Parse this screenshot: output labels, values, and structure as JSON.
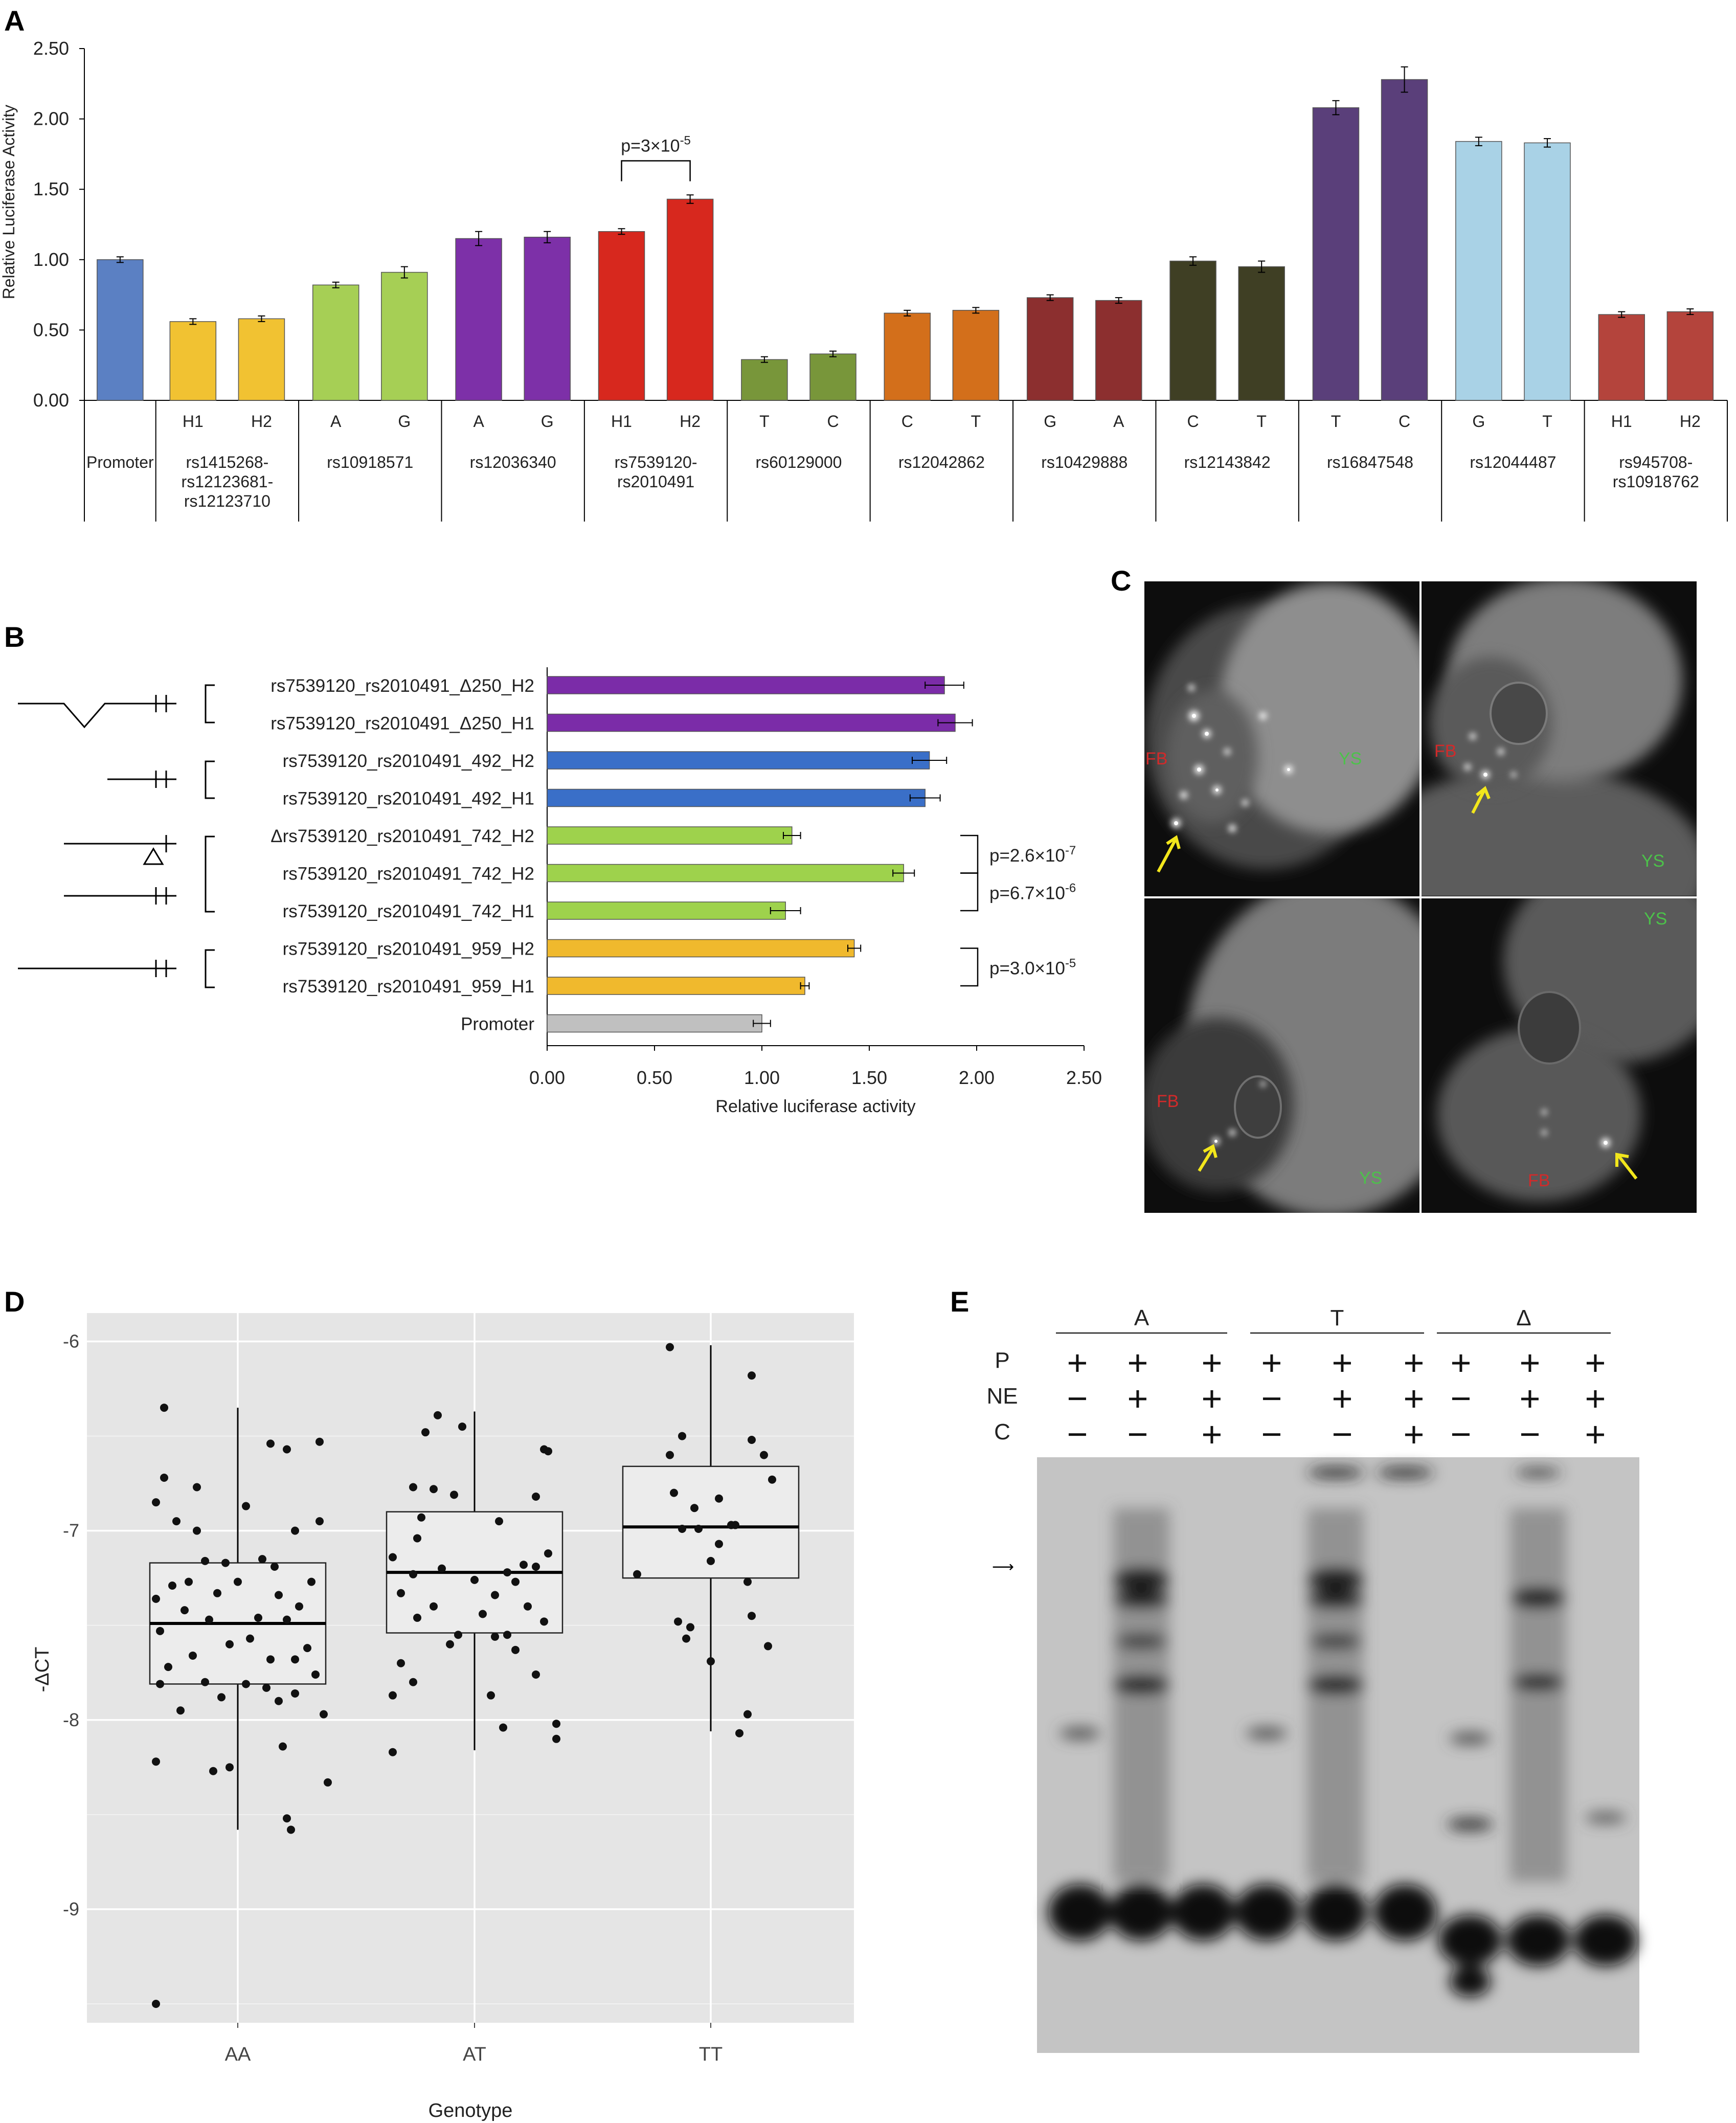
{
  "panels": {
    "A": "A",
    "B": "B",
    "C": "C",
    "D": "D",
    "E": "E"
  },
  "colors": {
    "promoter_blue": "#5b80c3",
    "yellow": "#f1c232",
    "light_green": "#a6cf55",
    "purple": "#7d30a8",
    "red": "#d7281e",
    "olive": "#78963a",
    "orange": "#d36f1b",
    "brown": "#8c2f2f",
    "dark_olive": "#3f3f24",
    "dark_purple": "#5a3f7a",
    "light_blue": "#a9d2e6",
    "rose": "#b4443c",
    "gray": "#c0c0c0",
    "blue_b": "#3a6fc8",
    "purple_b": "#7b2ca8",
    "green_b": "#9ed24c",
    "yellow_b": "#f0b92d",
    "fb_label": "#d12a2a",
    "ys_label": "#4cc24a",
    "arrow": "#f2e61c",
    "panel_d_bg": "#e5e5e5"
  },
  "chart_data": [
    {
      "panel": "A",
      "type": "bar",
      "ylabel": "Relative Luciferase Activity",
      "ylim": [
        0,
        2.5
      ],
      "yticks": [
        "0.00",
        "0.50",
        "1.00",
        "1.50",
        "2.00",
        "2.50"
      ],
      "bars": [
        {
          "allele": "",
          "value": 1.0,
          "err": 0.02,
          "color": "#5b80c3"
        },
        {
          "allele": "H1",
          "value": 0.56,
          "err": 0.02,
          "color": "#f1c232"
        },
        {
          "allele": "H2",
          "value": 0.58,
          "err": 0.02,
          "color": "#f1c232"
        },
        {
          "allele": "A",
          "value": 0.82,
          "err": 0.02,
          "color": "#a6cf55"
        },
        {
          "allele": "G",
          "value": 0.91,
          "err": 0.04,
          "color": "#a6cf55"
        },
        {
          "allele": "A",
          "value": 1.15,
          "err": 0.05,
          "color": "#7d30a8"
        },
        {
          "allele": "G",
          "value": 1.16,
          "err": 0.04,
          "color": "#7d30a8"
        },
        {
          "allele": "H1",
          "value": 1.2,
          "err": 0.02,
          "color": "#d7281e"
        },
        {
          "allele": "H2",
          "value": 1.43,
          "err": 0.03,
          "color": "#d7281e"
        },
        {
          "allele": "T",
          "value": 0.29,
          "err": 0.02,
          "color": "#78963a"
        },
        {
          "allele": "C",
          "value": 0.33,
          "err": 0.02,
          "color": "#78963a"
        },
        {
          "allele": "C",
          "value": 0.62,
          "err": 0.02,
          "color": "#d36f1b"
        },
        {
          "allele": "T",
          "value": 0.64,
          "err": 0.02,
          "color": "#d36f1b"
        },
        {
          "allele": "G",
          "value": 0.73,
          "err": 0.02,
          "color": "#8c2f2f"
        },
        {
          "allele": "A",
          "value": 0.71,
          "err": 0.02,
          "color": "#8c2f2f"
        },
        {
          "allele": "C",
          "value": 0.99,
          "err": 0.03,
          "color": "#3f3f24"
        },
        {
          "allele": "T",
          "value": 0.95,
          "err": 0.04,
          "color": "#3f3f24"
        },
        {
          "allele": "T",
          "value": 2.08,
          "err": 0.05,
          "color": "#5a3f7a"
        },
        {
          "allele": "C",
          "value": 2.28,
          "err": 0.09,
          "color": "#5a3f7a"
        },
        {
          "allele": "G",
          "value": 1.84,
          "err": 0.03,
          "color": "#a9d2e6"
        },
        {
          "allele": "T",
          "value": 1.83,
          "err": 0.03,
          "color": "#a9d2e6"
        },
        {
          "allele": "H1",
          "value": 0.61,
          "err": 0.02,
          "color": "#b4443c"
        },
        {
          "allele": "H2",
          "value": 0.63,
          "err": 0.02,
          "color": "#b4443c"
        }
      ],
      "groups": [
        {
          "label": [
            "Promoter"
          ],
          "bars": [
            0
          ]
        },
        {
          "label": [
            "rs1415268-",
            "rs12123681-",
            "rs12123710"
          ],
          "bars": [
            1,
            2
          ]
        },
        {
          "label": [
            "rs10918571"
          ],
          "bars": [
            3,
            4
          ]
        },
        {
          "label": [
            "rs12036340"
          ],
          "bars": [
            5,
            6
          ]
        },
        {
          "label": [
            "rs7539120-",
            "rs2010491"
          ],
          "bars": [
            7,
            8
          ]
        },
        {
          "label": [
            "rs60129000"
          ],
          "bars": [
            9,
            10
          ]
        },
        {
          "label": [
            "rs12042862"
          ],
          "bars": [
            11,
            12
          ]
        },
        {
          "label": [
            "rs10429888"
          ],
          "bars": [
            13,
            14
          ]
        },
        {
          "label": [
            "rs12143842"
          ],
          "bars": [
            15,
            16
          ]
        },
        {
          "label": [
            "rs16847548"
          ],
          "bars": [
            17,
            18
          ]
        },
        {
          "label": [
            "rs12044487"
          ],
          "bars": [
            19,
            20
          ]
        },
        {
          "label": [
            "rs945708-",
            "rs10918762"
          ],
          "bars": [
            21,
            22
          ]
        }
      ],
      "annotation": {
        "base": "p=3×10",
        "exp": "-5",
        "bars": [
          7,
          8
        ]
      }
    },
    {
      "panel": "B",
      "type": "bar",
      "orientation": "horizontal",
      "xlabel": "Relative luciferase activity",
      "xlim": [
        0,
        2.5
      ],
      "xticks": [
        "0.00",
        "0.50",
        "1.00",
        "1.50",
        "2.00",
        "2.50"
      ],
      "rows": [
        {
          "label": "rs7539120_rs2010491_Δ250_H2",
          "value": 1.85,
          "err": 0.09,
          "color": "#7b2ca8"
        },
        {
          "label": "rs7539120_rs2010491_Δ250_H1",
          "value": 1.9,
          "err": 0.08,
          "color": "#7b2ca8"
        },
        {
          "label": "rs7539120_rs2010491_492_H2",
          "value": 1.78,
          "err": 0.08,
          "color": "#3a6fc8"
        },
        {
          "label": "rs7539120_rs2010491_492_H1",
          "value": 1.76,
          "err": 0.07,
          "color": "#3a6fc8"
        },
        {
          "label": "Δrs7539120_rs2010491_742_H2",
          "value": 1.14,
          "err": 0.04,
          "color": "#9ed24c"
        },
        {
          "label": "rs7539120_rs2010491_742_H2",
          "value": 1.66,
          "err": 0.05,
          "color": "#9ed24c"
        },
        {
          "label": "rs7539120_rs2010491_742_H1",
          "value": 1.11,
          "err": 0.07,
          "color": "#9ed24c"
        },
        {
          "label": "rs7539120_rs2010491_959_H2",
          "value": 1.43,
          "err": 0.03,
          "color": "#f0b92d"
        },
        {
          "label": "rs7539120_rs2010491_959_H1",
          "value": 1.2,
          "err": 0.02,
          "color": "#f0b92d"
        },
        {
          "label": "Promoter",
          "value": 1.0,
          "err": 0.04,
          "color": "#c0c0c0"
        }
      ],
      "annotations": [
        {
          "base": "p=2.6×10",
          "exp": "-7",
          "rows": [
            4,
            5
          ]
        },
        {
          "base": "p=6.7×10",
          "exp": "-6",
          "rows": [
            5,
            6
          ]
        },
        {
          "base": "p=3.0×10",
          "exp": "-5",
          "rows": [
            7,
            8
          ]
        }
      ]
    },
    {
      "panel": "D",
      "type": "box",
      "xlabel": "Genotype",
      "ylabel": "-ΔCT",
      "ylim": [
        -9.6,
        -5.85
      ],
      "yticks": [
        -6,
        -7,
        -8,
        -9
      ],
      "ytick_labels": [
        "-6",
        "-7",
        "-8",
        "-9"
      ],
      "categories": [
        "AA",
        "AT",
        "TT"
      ],
      "boxes": [
        {
          "q1": -7.81,
          "median": -7.49,
          "q3": -7.17,
          "whisker_low": -8.58,
          "whisker_high": -6.35
        },
        {
          "q1": -7.54,
          "median": -7.22,
          "q3": -6.9,
          "whisker_low": -8.16,
          "whisker_high": -6.37
        },
        {
          "q1": -7.25,
          "median": -6.98,
          "q3": -6.66,
          "whisker_low": -8.06,
          "whisker_high": -6.02
        }
      ],
      "points": [
        [
          [
            -0.18,
            -6.35
          ],
          [
            0.08,
            -6.54
          ],
          [
            0.2,
            -6.53
          ],
          [
            0.12,
            -6.57
          ],
          [
            -0.18,
            -6.72
          ],
          [
            -0.1,
            -6.77
          ],
          [
            -0.2,
            -6.85
          ],
          [
            0.02,
            -6.87
          ],
          [
            -0.15,
            -6.95
          ],
          [
            0.2,
            -6.95
          ],
          [
            -0.1,
            -7.0
          ],
          [
            0.14,
            -7.0
          ],
          [
            0.06,
            -7.15
          ],
          [
            -0.08,
            -7.16
          ],
          [
            -0.03,
            -7.17
          ],
          [
            0.09,
            -7.19
          ],
          [
            -0.12,
            -7.27
          ],
          [
            0.0,
            -7.27
          ],
          [
            0.18,
            -7.27
          ],
          [
            -0.16,
            -7.29
          ],
          [
            -0.05,
            -7.33
          ],
          [
            0.1,
            -7.34
          ],
          [
            -0.2,
            -7.36
          ],
          [
            0.15,
            -7.4
          ],
          [
            -0.13,
            -7.42
          ],
          [
            0.05,
            -7.46
          ],
          [
            -0.07,
            -7.47
          ],
          [
            0.12,
            -7.47
          ],
          [
            -0.19,
            -7.53
          ],
          [
            0.03,
            -7.57
          ],
          [
            -0.02,
            -7.6
          ],
          [
            0.17,
            -7.62
          ],
          [
            -0.11,
            -7.66
          ],
          [
            0.08,
            -7.68
          ],
          [
            0.14,
            -7.68
          ],
          [
            -0.17,
            -7.72
          ],
          [
            0.19,
            -7.76
          ],
          [
            -0.08,
            -7.8
          ],
          [
            -0.19,
            -7.81
          ],
          [
            0.02,
            -7.81
          ],
          [
            0.07,
            -7.83
          ],
          [
            -0.04,
            -7.88
          ],
          [
            0.14,
            -7.86
          ],
          [
            0.1,
            -7.9
          ],
          [
            -0.14,
            -7.95
          ],
          [
            0.21,
            -7.97
          ],
          [
            0.11,
            -8.14
          ],
          [
            -0.2,
            -8.22
          ],
          [
            -0.02,
            -8.25
          ],
          [
            -0.06,
            -8.27
          ],
          [
            0.22,
            -8.33
          ],
          [
            0.12,
            -8.52
          ],
          [
            0.13,
            -8.58
          ],
          [
            -0.2,
            -9.5
          ]
        ],
        [
          [
            -0.09,
            -6.39
          ],
          [
            -0.03,
            -6.45
          ],
          [
            -0.12,
            -6.48
          ],
          [
            0.17,
            -6.57
          ],
          [
            0.18,
            -6.58
          ],
          [
            -0.15,
            -6.77
          ],
          [
            -0.1,
            -6.78
          ],
          [
            -0.05,
            -6.81
          ],
          [
            0.15,
            -6.82
          ],
          [
            -0.13,
            -6.93
          ],
          [
            0.06,
            -6.95
          ],
          [
            -0.14,
            -7.04
          ],
          [
            0.18,
            -7.12
          ],
          [
            -0.2,
            -7.14
          ],
          [
            0.12,
            -7.18
          ],
          [
            0.15,
            -7.19
          ],
          [
            -0.08,
            -7.2
          ],
          [
            0.08,
            -7.22
          ],
          [
            -0.15,
            -7.23
          ],
          [
            0.0,
            -7.26
          ],
          [
            0.1,
            -7.27
          ],
          [
            -0.18,
            -7.33
          ],
          [
            0.05,
            -7.34
          ],
          [
            -0.1,
            -7.4
          ],
          [
            0.13,
            -7.4
          ],
          [
            0.02,
            -7.44
          ],
          [
            -0.14,
            -7.46
          ],
          [
            0.17,
            -7.48
          ],
          [
            -0.04,
            -7.55
          ],
          [
            0.08,
            -7.55
          ],
          [
            0.05,
            -7.56
          ],
          [
            -0.06,
            -7.6
          ],
          [
            0.1,
            -7.63
          ],
          [
            -0.18,
            -7.7
          ],
          [
            0.15,
            -7.76
          ],
          [
            -0.15,
            -7.8
          ],
          [
            -0.2,
            -7.87
          ],
          [
            0.04,
            -7.87
          ],
          [
            0.2,
            -8.02
          ],
          [
            0.07,
            -8.04
          ],
          [
            0.2,
            -8.1
          ],
          [
            -0.2,
            -8.17
          ]
        ],
        [
          [
            -0.1,
            -6.03
          ],
          [
            0.1,
            -6.18
          ],
          [
            -0.07,
            -6.5
          ],
          [
            0.1,
            -6.52
          ],
          [
            0.13,
            -6.6
          ],
          [
            -0.1,
            -6.6
          ],
          [
            0.15,
            -6.73
          ],
          [
            -0.09,
            -6.8
          ],
          [
            0.02,
            -6.83
          ],
          [
            -0.04,
            -6.88
          ],
          [
            0.06,
            -6.97
          ],
          [
            0.05,
            -6.97
          ],
          [
            -0.03,
            -6.99
          ],
          [
            -0.07,
            -6.99
          ],
          [
            0.02,
            -7.07
          ],
          [
            0.0,
            -7.16
          ],
          [
            -0.18,
            -7.23
          ],
          [
            0.09,
            -7.27
          ],
          [
            0.1,
            -7.45
          ],
          [
            -0.08,
            -7.48
          ],
          [
            -0.05,
            -7.51
          ],
          [
            -0.06,
            -7.57
          ],
          [
            0.14,
            -7.61
          ],
          [
            0.0,
            -7.69
          ],
          [
            0.09,
            -7.97
          ],
          [
            0.07,
            -8.07
          ]
        ]
      ]
    }
  ],
  "panel_c": {
    "fb": "FB",
    "ys": "YS"
  },
  "panel_e": {
    "groups": [
      "A",
      "T",
      "Δ"
    ],
    "row_labels": [
      "P",
      "NE",
      "C"
    ],
    "lanes": [
      [
        "+",
        "−",
        "−"
      ],
      [
        "+",
        "+",
        "−"
      ],
      [
        "+",
        "+",
        "+"
      ],
      [
        "+",
        "−",
        "−"
      ],
      [
        "+",
        "+",
        "−"
      ],
      [
        "+",
        "+",
        "+"
      ],
      [
        "+",
        "−",
        "−"
      ],
      [
        "+",
        "+",
        "−"
      ],
      [
        "+",
        "+",
        "+"
      ]
    ]
  }
}
